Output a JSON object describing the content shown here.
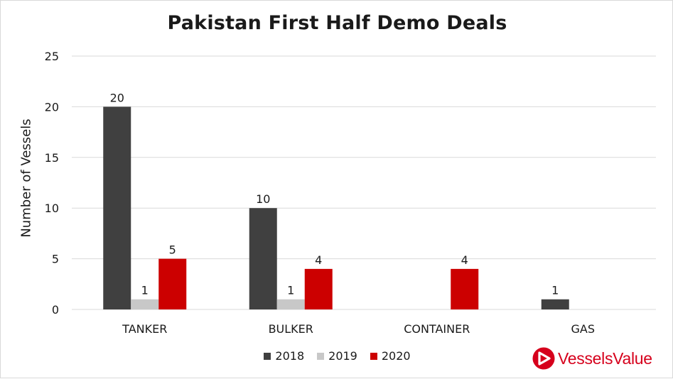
{
  "chart_data": {
    "type": "bar",
    "title": "Pakistan First Half Demo Deals",
    "ylabel": "Number of Vessels",
    "xlabel": "",
    "categories": [
      "TANKER",
      "BULKER",
      "CONTAINER",
      "GAS"
    ],
    "series": [
      {
        "name": "2018",
        "color": "#404040",
        "values": [
          20,
          10,
          null,
          1
        ]
      },
      {
        "name": "2019",
        "color": "#c8c8c8",
        "values": [
          1,
          1,
          null,
          null
        ]
      },
      {
        "name": "2020",
        "color": "#cc0000",
        "values": [
          5,
          4,
          4,
          null
        ]
      }
    ],
    "ylim": [
      0,
      25
    ],
    "yticks": [
      0,
      5,
      10,
      15,
      20,
      25
    ],
    "grid": true,
    "legend": "bottom",
    "data_labels": true
  },
  "branding": {
    "logo_text": "VesselsValue",
    "logo_color": "#d6001c",
    "logo_icon": "vesselsvalue-triangle-logo"
  }
}
